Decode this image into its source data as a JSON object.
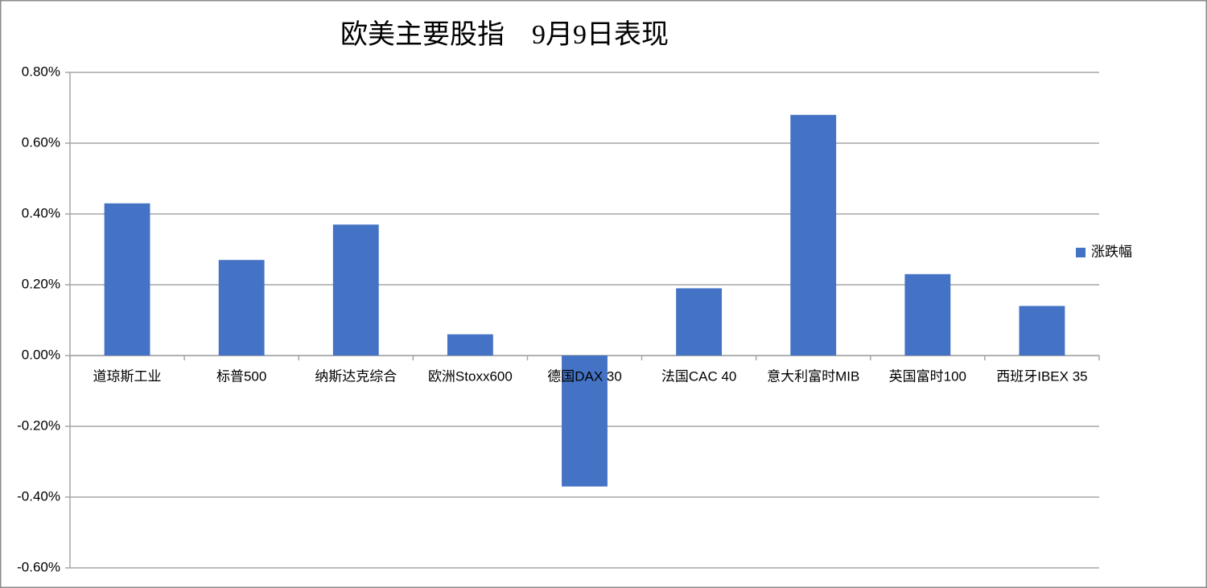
{
  "chart_data": {
    "type": "bar",
    "title": "欧美主要股指　9月9日表现",
    "categories": [
      "道琼斯工业",
      "标普500",
      "纳斯达克综合",
      "欧洲Stoxx600",
      "德国DAX 30",
      "法国CAC 40",
      "意大利富时MIB",
      "英国富时100",
      "西班牙IBEX 35"
    ],
    "series": [
      {
        "name": "涨跌幅",
        "color": "#4472c4",
        "values": [
          0.43,
          0.27,
          0.37,
          0.06,
          -0.37,
          0.19,
          0.68,
          0.23,
          0.14
        ]
      }
    ],
    "ylim": [
      -0.6,
      0.8
    ],
    "yticks": [
      {
        "value": -0.6,
        "label": "-0.60%"
      },
      {
        "value": -0.4,
        "label": "-0.40%"
      },
      {
        "value": -0.2,
        "label": "-0.20%"
      },
      {
        "value": 0,
        "label": "0.00%"
      },
      {
        "value": 0.2,
        "label": "0.20%"
      },
      {
        "value": 0.4,
        "label": "0.40%"
      },
      {
        "value": 0.6,
        "label": "0.60%"
      },
      {
        "value": 0.8,
        "label": "0.80%"
      }
    ],
    "grid": true,
    "legend": "right"
  }
}
